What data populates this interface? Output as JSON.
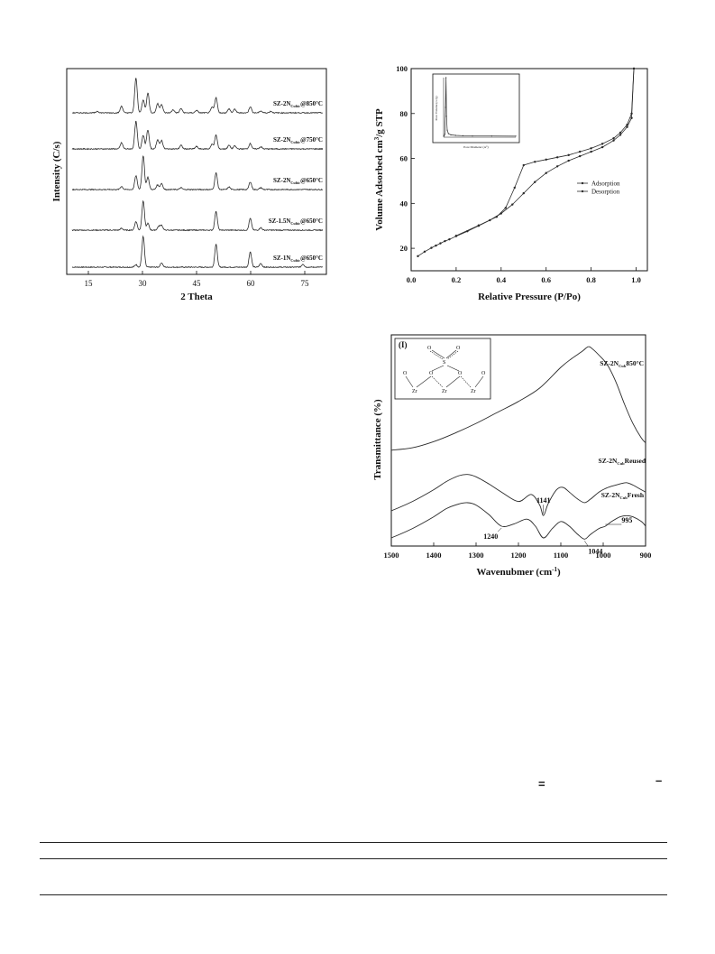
{
  "chart_data": [
    {
      "type": "line",
      "xlabel": "2 Theta",
      "ylabel": "Intensity (C/s)",
      "xlim": [
        9,
        81
      ],
      "xticks": [
        15,
        30,
        45,
        60,
        75
      ],
      "series": [
        {
          "name": "SZ-1N",
          "sub": "Cubic",
          "suffix": "@650°C",
          "peaks": [
            [
              28.2,
              0.08
            ],
            [
              30.2,
              1.0
            ],
            [
              35.3,
              0.14
            ],
            [
              50.4,
              0.75
            ],
            [
              59.9,
              0.5
            ],
            [
              62.8,
              0.12
            ],
            [
              74.5,
              0.1
            ]
          ]
        },
        {
          "name": "SZ-1.5N",
          "sub": "Cubic",
          "suffix": "@650°C",
          "peaks": [
            [
              24.2,
              0.06
            ],
            [
              28.2,
              0.28
            ],
            [
              30.2,
              0.95
            ],
            [
              31.5,
              0.22
            ],
            [
              34.5,
              0.12
            ],
            [
              35.3,
              0.16
            ],
            [
              50.4,
              0.62
            ],
            [
              59.9,
              0.38
            ],
            [
              62.8,
              0.08
            ]
          ]
        },
        {
          "name": "SZ-2N",
          "sub": "Cubic",
          "suffix": "@650°C",
          "peaks": [
            [
              24.2,
              0.1
            ],
            [
              28.2,
              0.45
            ],
            [
              30.2,
              1.1
            ],
            [
              31.5,
              0.4
            ],
            [
              34.2,
              0.15
            ],
            [
              35.3,
              0.2
            ],
            [
              40.7,
              0.06
            ],
            [
              50.4,
              0.55
            ],
            [
              54.0,
              0.08
            ],
            [
              59.9,
              0.25
            ],
            [
              62.8,
              0.06
            ]
          ]
        },
        {
          "name": "SZ-2N",
          "sub": "Cubic",
          "suffix": "@750°C",
          "peaks": [
            [
              24.2,
              0.2
            ],
            [
              28.2,
              0.9
            ],
            [
              30.2,
              0.45
            ],
            [
              31.5,
              0.62
            ],
            [
              34.2,
              0.3
            ],
            [
              35.3,
              0.28
            ],
            [
              40.7,
              0.12
            ],
            [
              45.0,
              0.08
            ],
            [
              49.3,
              0.15
            ],
            [
              50.4,
              0.45
            ],
            [
              54.0,
              0.12
            ],
            [
              55.6,
              0.1
            ],
            [
              59.9,
              0.18
            ],
            [
              62.8,
              0.07
            ]
          ]
        },
        {
          "name": "SZ-2N",
          "sub": "Cubic",
          "suffix": "@850°C",
          "peaks": [
            [
              17.5,
              0.05
            ],
            [
              24.2,
              0.22
            ],
            [
              28.2,
              1.15
            ],
            [
              30.2,
              0.42
            ],
            [
              31.5,
              0.65
            ],
            [
              34.2,
              0.3
            ],
            [
              35.3,
              0.28
            ],
            [
              38.5,
              0.1
            ],
            [
              40.7,
              0.14
            ],
            [
              45.0,
              0.08
            ],
            [
              49.3,
              0.18
            ],
            [
              50.4,
              0.5
            ],
            [
              54.0,
              0.13
            ],
            [
              55.6,
              0.12
            ],
            [
              59.9,
              0.2
            ],
            [
              62.8,
              0.06
            ],
            [
              65.6,
              0.05
            ]
          ]
        }
      ]
    },
    {
      "type": "line",
      "xlabel": "Relative Pressure (P/Po)",
      "ylabel": "Volume Adsorbed cm³/g STP",
      "xlim": [
        0.0,
        1.05
      ],
      "ylim": [
        10,
        100
      ],
      "xticks": [
        0.0,
        0.2,
        0.4,
        0.6,
        0.8,
        1.0
      ],
      "yticks": [
        20,
        40,
        60,
        80,
        100
      ],
      "legend": "middle-right",
      "series": [
        {
          "name": "Adsorption",
          "x": [
            0.03,
            0.06,
            0.09,
            0.11,
            0.13,
            0.15,
            0.17,
            0.2,
            0.25,
            0.3,
            0.35,
            0.4,
            0.45,
            0.5,
            0.55,
            0.6,
            0.65,
            0.7,
            0.75,
            0.8,
            0.85,
            0.9,
            0.93,
            0.96,
            0.98,
            0.99
          ],
          "y": [
            16.5,
            18.5,
            20.2,
            21.2,
            22.2,
            23.2,
            24.0,
            25.4,
            27.6,
            30.0,
            32.5,
            35.5,
            39.5,
            44.5,
            49.5,
            53.5,
            56.5,
            59.0,
            61.0,
            63.0,
            65.0,
            68.0,
            70.5,
            74.0,
            78.0,
            100.0
          ]
        },
        {
          "name": "Desorption",
          "x": [
            0.99,
            0.98,
            0.96,
            0.93,
            0.9,
            0.85,
            0.8,
            0.75,
            0.7,
            0.65,
            0.6,
            0.55,
            0.5,
            0.46,
            0.42,
            0.38,
            0.3,
            0.2
          ],
          "y": [
            100.0,
            80.0,
            75.0,
            71.5,
            69.0,
            66.5,
            64.5,
            63.0,
            61.5,
            60.5,
            59.5,
            58.5,
            57.0,
            47.0,
            38.0,
            34.0,
            30.2,
            25.6
          ]
        }
      ],
      "inset": {
        "xlabel": "Pore Diameter (A°)",
        "ylabel": "Pore Volume (cc/g)",
        "x": [
          2,
          5,
          8,
          10,
          12,
          15,
          20,
          30,
          50,
          80,
          120,
          200,
          300
        ],
        "y": [
          0.02,
          0.05,
          0.5,
          1.0,
          0.35,
          0.12,
          0.06,
          0.04,
          0.03,
          0.025,
          0.02,
          0.02,
          0.018
        ]
      }
    },
    {
      "type": "line",
      "xlabel": "Wavenubmer (cm⁻¹)",
      "ylabel": "Transmittance (%)",
      "xlim": [
        1500,
        900
      ],
      "xticks": [
        1500,
        1400,
        1300,
        1200,
        1100,
        1000,
        900
      ],
      "panel_label": "(I)",
      "annotations": [
        "1240",
        "1141",
        "1044",
        "995"
      ],
      "series": [
        {
          "name": "SZ-2N",
          "sub": "Cub",
          "suffix": "850°C",
          "x": [
            1500,
            1450,
            1400,
            1350,
            1300,
            1250,
            1200,
            1150,
            1100,
            1075,
            1050,
            1035,
            1025,
            1010,
            990,
            970,
            950,
            930,
            910,
            900
          ],
          "y": [
            0.12,
            0.14,
            0.19,
            0.26,
            0.34,
            0.43,
            0.52,
            0.63,
            0.8,
            0.87,
            0.93,
            0.97,
            0.95,
            0.9,
            0.82,
            0.68,
            0.5,
            0.34,
            0.22,
            0.18
          ]
        },
        {
          "name": "SZ-2N",
          "sub": "Cub",
          "suffix": "Reused",
          "x": [
            1500,
            1450,
            1400,
            1370,
            1340,
            1320,
            1300,
            1270,
            1240,
            1200,
            1170,
            1150,
            1141,
            1130,
            1110,
            1095,
            1080,
            1060,
            1044,
            1030,
            1010,
            995,
            980,
            960,
            945,
            930,
            910,
            900
          ],
          "y": [
            -0.2,
            -0.12,
            -0.02,
            0.05,
            0.1,
            0.11,
            0.09,
            0.03,
            -0.04,
            -0.12,
            -0.06,
            -0.15,
            -0.24,
            -0.14,
            -0.02,
            0.0,
            -0.04,
            -0.1,
            -0.13,
            -0.1,
            -0.04,
            -0.01,
            0.01,
            0.03,
            0.04,
            0.02,
            -0.02,
            -0.04
          ]
        },
        {
          "name": "SZ-2N",
          "sub": "Cub",
          "suffix": "Fresh",
          "x": [
            1500,
            1450,
            1400,
            1370,
            1340,
            1320,
            1300,
            1270,
            1240,
            1210,
            1180,
            1160,
            1141,
            1120,
            1100,
            1080,
            1060,
            1044,
            1030,
            1010,
            995,
            980,
            960,
            945,
            930,
            910,
            900
          ],
          "y": [
            -0.3,
            -0.22,
            -0.12,
            -0.05,
            -0.01,
            0.0,
            -0.02,
            -0.1,
            -0.2,
            -0.18,
            -0.14,
            -0.2,
            -0.3,
            -0.22,
            -0.16,
            -0.2,
            -0.27,
            -0.31,
            -0.27,
            -0.22,
            -0.2,
            -0.16,
            -0.12,
            -0.11,
            -0.12,
            -0.16,
            -0.2
          ]
        }
      ]
    }
  ],
  "xrd": {
    "ylabel": "Intensity (C/s)",
    "xlabel": "2 Theta"
  },
  "bet": {
    "ylabel": "Volume Adsorbed cm",
    "ylabel_sup": "3",
    "ylabel_tail": "/g STP",
    "xlabel": "Relative Pressure (P/Po)",
    "inset_xlabel": "Pore Diameter (A°)",
    "inset_ylabel": "Pore Volume (cc/g)"
  },
  "ftir": {
    "ylabel": "Transmittance (%)",
    "xlabel_main": "Wavenubmer (cm",
    "xlabel_sup": "-1",
    "xlabel_end": ")"
  },
  "scheme": {
    "O": "O",
    "S": "S",
    "Zr": "Zr"
  },
  "stray_marks": {
    "equals": "=",
    "minus": "–"
  },
  "colors": {
    "line": "#2a2a2a",
    "axis": "#111111",
    "background": "#ffffff"
  }
}
